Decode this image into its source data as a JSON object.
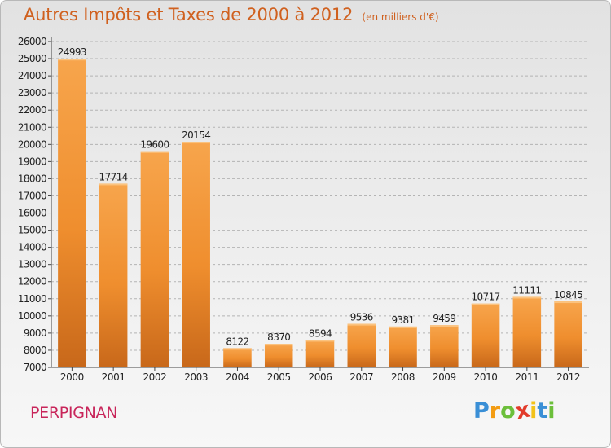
{
  "chart_data": {
    "type": "bar",
    "title": "Autres Impôts et Taxes de 2000 à 2012",
    "subtitle": "(en milliers d'€)",
    "xlabel": "",
    "ylabel": "",
    "categories": [
      "2000",
      "2001",
      "2002",
      "2003",
      "2004",
      "2005",
      "2006",
      "2007",
      "2008",
      "2009",
      "2010",
      "2011",
      "2012"
    ],
    "values": [
      24993,
      17714,
      19600,
      20154,
      8122,
      8370,
      8594,
      9536,
      9381,
      9459,
      10717,
      11111,
      10845
    ],
    "data_labels": [
      "24993",
      "17714",
      "19600",
      "20154",
      "8122",
      "8370",
      "8594",
      "9536",
      "9381",
      "9459",
      "10717",
      "11111",
      "10845"
    ],
    "ylim": [
      7000,
      26000
    ],
    "yticks": [
      7000,
      8000,
      9000,
      10000,
      11000,
      12000,
      13000,
      14000,
      15000,
      16000,
      17000,
      18000,
      19000,
      20000,
      21000,
      22000,
      23000,
      24000,
      25000,
      26000
    ],
    "grid": true,
    "bar_color": "#f0952f",
    "bar_color_dark": "#c8681a"
  },
  "commune": "PERPIGNAN",
  "logo": {
    "letters": [
      "P",
      "r",
      "o",
      "x",
      "i",
      "t",
      "i"
    ],
    "colors": [
      "#3a8fd6",
      "#f39c12",
      "#6cbf3b",
      "#e23b2a",
      "#f2c21b",
      "#3a8fd6",
      "#6cbf3b"
    ]
  }
}
